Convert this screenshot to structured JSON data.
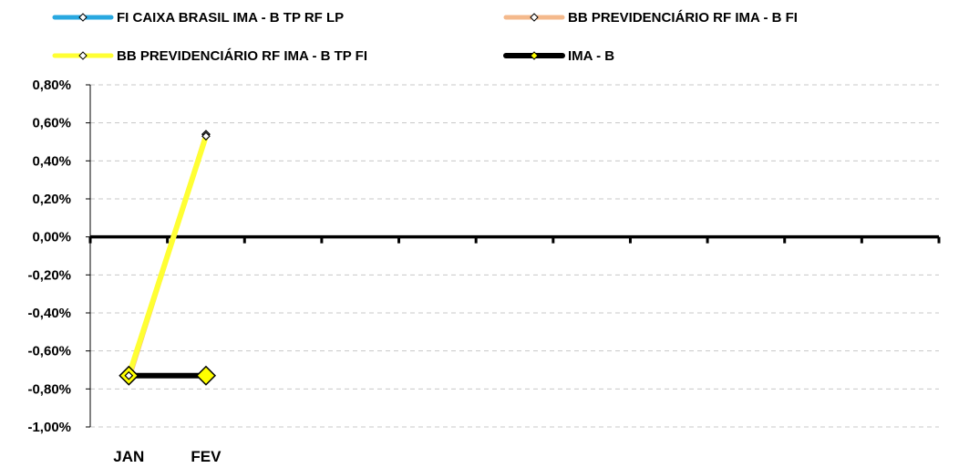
{
  "chart_data": {
    "type": "line",
    "categories": [
      "JAN",
      "FEV"
    ],
    "ylim": [
      -1.0,
      0.8
    ],
    "yticks": [
      "0,80%",
      "0,60%",
      "0,40%",
      "0,20%",
      "0,00%",
      "-0,20%",
      "-0,40%",
      "-0,60%",
      "-0,80%",
      "-1,00%"
    ],
    "grid": true,
    "legend_position": "top",
    "series": [
      {
        "name": "FI CAIXA BRASIL IMA - B TP RF LP",
        "color": "#29a8e0",
        "marker_fill": "#ffffff",
        "values": [
          -0.75,
          0.54
        ]
      },
      {
        "name": "BB PREVIDENCIÁRIO RF IMA - B FI",
        "color": "#f4b98c",
        "marker_fill": "#ffffff",
        "values": [
          -0.75,
          0.54
        ]
      },
      {
        "name": "BB PREVIDENCIÁRIO RF IMA - B TP FI",
        "color": "#ffff33",
        "marker_fill": "#ffffff",
        "values": [
          -0.73,
          0.53
        ]
      },
      {
        "name": "IMA - B",
        "color": "#000000",
        "marker_fill": "#ffff00",
        "values": [
          -0.73,
          -0.73
        ]
      }
    ]
  }
}
